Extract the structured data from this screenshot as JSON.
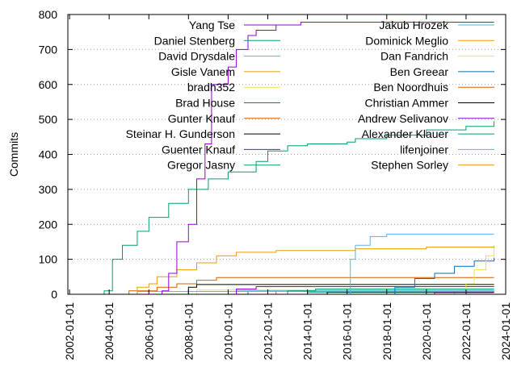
{
  "chart_data": {
    "type": "line",
    "title": "",
    "xlabel": "",
    "ylabel": "Commits",
    "ylim": [
      0,
      800
    ],
    "xlim": [
      "2001-12-01",
      "2024-01-01"
    ],
    "y_ticks": [
      0,
      100,
      200,
      300,
      400,
      500,
      600,
      700,
      800
    ],
    "x_ticks": [
      "2002-01-01",
      "2004-01-01",
      "2006-01-01",
      "2008-01-01",
      "2010-01-01",
      "2012-01-01",
      "2014-01-01",
      "2016-01-01",
      "2018-01-01",
      "2020-01-01",
      "2022-01-01",
      "2024-01-01"
    ],
    "grid": "horizontal dotted",
    "legend_placement": "top, two columns",
    "series": [
      {
        "name": "Yang Tse",
        "color": "#9400d3",
        "points": [
          [
            "2006-08-01",
            0
          ],
          [
            "2006-09-01",
            10
          ],
          [
            "2007-01-01",
            60
          ],
          [
            "2007-06-01",
            150
          ],
          [
            "2008-01-01",
            200
          ],
          [
            "2008-06-01",
            330
          ],
          [
            "2008-11-01",
            430
          ],
          [
            "2009-03-01",
            600
          ],
          [
            "2010-01-01",
            650
          ],
          [
            "2010-06-01",
            700
          ],
          [
            "2011-01-01",
            740
          ],
          [
            "2011-06-01",
            755
          ],
          [
            "2012-06-01",
            770
          ],
          [
            "2013-09-01",
            778
          ],
          [
            "2023-06-01",
            778
          ]
        ]
      },
      {
        "name": "Daniel Stenberg",
        "color": "#009e73",
        "points": [
          [
            "2003-07-01",
            0
          ],
          [
            "2003-10-01",
            10
          ],
          [
            "2004-03-01",
            100
          ],
          [
            "2004-09-01",
            140
          ],
          [
            "2005-06-01",
            180
          ],
          [
            "2006-01-01",
            220
          ],
          [
            "2007-01-01",
            260
          ],
          [
            "2008-01-01",
            300
          ],
          [
            "2009-01-01",
            330
          ],
          [
            "2010-01-01",
            350
          ],
          [
            "2011-06-01",
            380
          ],
          [
            "2012-01-01",
            410
          ],
          [
            "2013-01-01",
            425
          ],
          [
            "2014-01-01",
            430
          ],
          [
            "2016-01-01",
            435
          ],
          [
            "2016-06-01",
            445
          ],
          [
            "2018-01-01",
            455
          ],
          [
            "2020-01-01",
            470
          ],
          [
            "2022-01-01",
            480
          ],
          [
            "2023-06-01",
            495
          ]
        ]
      },
      {
        "name": "David Drysdale",
        "color": "#56b4e9",
        "points": [
          [
            "2015-12-01",
            0
          ],
          [
            "2016-03-01",
            100
          ],
          [
            "2016-06-01",
            140
          ],
          [
            "2017-03-01",
            165
          ],
          [
            "2018-01-01",
            172
          ],
          [
            "2023-06-01",
            172
          ]
        ]
      },
      {
        "name": "Gisle Vanem",
        "color": "#e69f00",
        "points": [
          [
            "2004-06-01",
            0
          ],
          [
            "2005-06-01",
            20
          ],
          [
            "2006-01-01",
            30
          ],
          [
            "2006-06-01",
            50
          ],
          [
            "2007-06-01",
            70
          ],
          [
            "2008-06-01",
            90
          ],
          [
            "2009-06-01",
            110
          ],
          [
            "2010-06-01",
            120
          ],
          [
            "2012-06-01",
            125
          ],
          [
            "2016-06-01",
            130
          ],
          [
            "2020-01-01",
            135
          ],
          [
            "2023-06-01",
            138
          ]
        ]
      },
      {
        "name": "bradh352",
        "color": "#f0e442",
        "points": [
          [
            "2021-11-01",
            0
          ],
          [
            "2022-01-01",
            30
          ],
          [
            "2022-06-01",
            70
          ],
          [
            "2023-01-01",
            110
          ],
          [
            "2023-06-01",
            140
          ]
        ]
      },
      {
        "name": "Brad House",
        "color": "#0072b2",
        "points": [
          [
            "2017-06-01",
            0
          ],
          [
            "2018-06-01",
            20
          ],
          [
            "2019-06-01",
            45
          ],
          [
            "2020-06-01",
            60
          ],
          [
            "2021-06-01",
            80
          ],
          [
            "2022-06-01",
            95
          ],
          [
            "2023-06-01",
            105
          ]
        ]
      },
      {
        "name": "Gunter Knauf",
        "color": "#d55e00",
        "points": [
          [
            "2004-06-01",
            0
          ],
          [
            "2005-01-01",
            10
          ],
          [
            "2006-06-01",
            20
          ],
          [
            "2007-06-01",
            30
          ],
          [
            "2008-06-01",
            40
          ],
          [
            "2009-06-01",
            48
          ],
          [
            "2023-06-01",
            48
          ]
        ]
      },
      {
        "name": "Steinar H. Gunderson",
        "color": "#000000",
        "points": [
          [
            "2007-06-01",
            0
          ],
          [
            "2008-01-01",
            20
          ],
          [
            "2008-06-01",
            28
          ],
          [
            "2023-06-01",
            28
          ]
        ]
      },
      {
        "name": "Guenter Knauf",
        "color": "#9400d3",
        "points": [
          [
            "2009-06-01",
            0
          ],
          [
            "2010-06-01",
            15
          ],
          [
            "2011-06-01",
            22
          ],
          [
            "2023-06-01",
            22
          ]
        ]
      },
      {
        "name": "Gregor Jasny",
        "color": "#009e73",
        "points": [
          [
            "2012-06-01",
            0
          ],
          [
            "2013-01-01",
            10
          ],
          [
            "2014-06-01",
            15
          ],
          [
            "2023-06-01",
            15
          ]
        ]
      },
      {
        "name": "Jakub Hrozek",
        "color": "#56b4e9",
        "points": [
          [
            "2009-06-01",
            0
          ],
          [
            "2010-06-01",
            10
          ],
          [
            "2023-06-01",
            10
          ]
        ]
      },
      {
        "name": "Dominick Meglio",
        "color": "#e69f00",
        "points": [
          [
            "2004-06-01",
            0
          ],
          [
            "2005-06-01",
            8
          ],
          [
            "2023-06-01",
            8
          ]
        ]
      },
      {
        "name": "Dan Fandrich",
        "color": "#f0e442",
        "points": [
          [
            "2006-01-01",
            0
          ],
          [
            "2008-06-01",
            12
          ],
          [
            "2023-06-01",
            12
          ]
        ]
      },
      {
        "name": "Ben Greear",
        "color": "#0072b2",
        "points": [
          [
            "2010-06-01",
            0
          ],
          [
            "2011-01-01",
            10
          ],
          [
            "2023-06-01",
            10
          ]
        ]
      },
      {
        "name": "Ben Noordhuis",
        "color": "#d55e00",
        "points": [
          [
            "2011-06-01",
            0
          ],
          [
            "2012-06-01",
            8
          ],
          [
            "2023-06-01",
            8
          ]
        ]
      },
      {
        "name": "Christian Ammer",
        "color": "#000000",
        "points": [
          [
            "2014-06-01",
            0
          ],
          [
            "2015-01-01",
            7
          ],
          [
            "2023-06-01",
            7
          ]
        ]
      },
      {
        "name": "Andrew Selivanov",
        "color": "#9400d3",
        "points": [
          [
            "2019-06-01",
            0
          ],
          [
            "2020-06-01",
            6
          ],
          [
            "2023-06-01",
            6
          ]
        ]
      },
      {
        "name": "Alexander Klauer",
        "color": "#009e73",
        "points": [
          [
            "2013-06-01",
            0
          ],
          [
            "2014-01-01",
            5
          ],
          [
            "2023-06-01",
            5
          ]
        ]
      },
      {
        "name": "lifenjoiner",
        "color": "#56b4e9",
        "points": [
          [
            "2020-06-01",
            0
          ],
          [
            "2021-06-01",
            5
          ],
          [
            "2023-06-01",
            5
          ]
        ]
      },
      {
        "name": "Stephen Sorley",
        "color": "#e69f00",
        "points": [
          [
            "2019-01-01",
            0
          ],
          [
            "2020-06-01",
            4
          ],
          [
            "2023-06-01",
            4
          ]
        ]
      }
    ]
  }
}
